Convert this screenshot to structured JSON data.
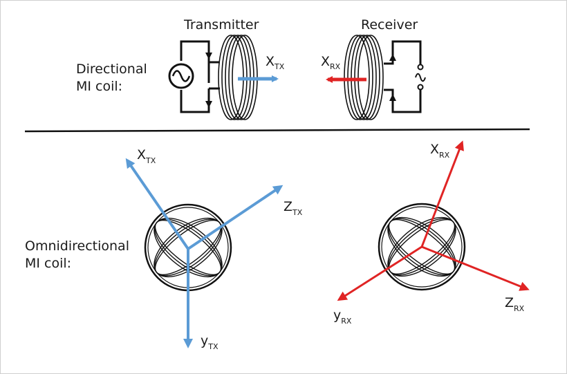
{
  "colors": {
    "tx": "#5b9bd5",
    "rx": "#e02424",
    "line": "#111111"
  },
  "top": {
    "row_label_line1": "Directional",
    "row_label_line2": "MI coil:",
    "transmitter_label": "Transmitter",
    "receiver_label": "Receiver",
    "tx_axis": {
      "main": "X",
      "sub": "TX"
    },
    "rx_axis": {
      "main": "X",
      "sub": "RX"
    }
  },
  "bottom": {
    "row_label_line1": "Omnidirectional",
    "row_label_line2": "MI coil:",
    "tx_axes": {
      "x": {
        "main": "X",
        "sub": "TX"
      },
      "y": {
        "main": "y",
        "sub": "TX"
      },
      "z": {
        "main": "Z",
        "sub": "TX"
      }
    },
    "rx_axes": {
      "x": {
        "main": "X",
        "sub": "RX"
      },
      "y": {
        "main": "y",
        "sub": "RX"
      },
      "z": {
        "main": "Z",
        "sub": "RX"
      }
    }
  }
}
